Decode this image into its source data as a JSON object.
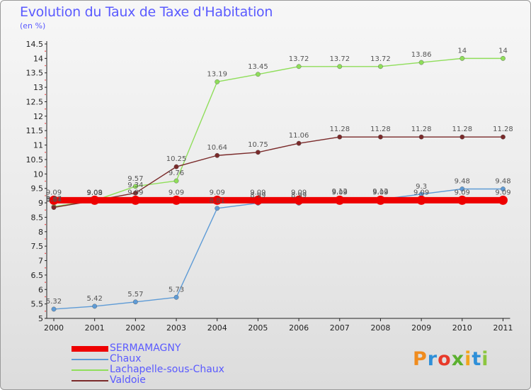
{
  "title": "Evolution du Taux de Taxe d'Habitation",
  "unit_label": "(en %)",
  "logo_text": "Proxiti",
  "chart_data": {
    "type": "line",
    "x": [
      "2000",
      "2001",
      "2002",
      "2003",
      "2004",
      "2005",
      "2006",
      "2007",
      "2008",
      "2009",
      "2010",
      "2011"
    ],
    "y_ticks": [
      "5",
      "5.5",
      "6",
      "6.5",
      "7",
      "7.5",
      "8",
      "8.5",
      "9",
      "9.5",
      "10",
      "10.5",
      "11",
      "11.5",
      "12",
      "12.5",
      "13",
      "13.5",
      "14",
      "14.5"
    ],
    "ylim": [
      5,
      14.5
    ],
    "series": [
      {
        "name": "SERMAMAGNY",
        "color": "#ee0000",
        "values": [
          9.09,
          9.09,
          9.09,
          9.09,
          9.09,
          9.09,
          9.09,
          9.09,
          9.09,
          9.09,
          9.09,
          9.09
        ],
        "labels": [
          "9.09",
          "9.09",
          "9.09",
          "9.09",
          "9.09",
          "9.09",
          "9.09",
          "9.09",
          "9.09",
          "9.09",
          "9.09",
          "9.09"
        ]
      },
      {
        "name": "Chaux",
        "color": "#5e9bd6",
        "values": [
          5.32,
          5.42,
          5.57,
          5.73,
          8.81,
          8.99,
          8.99,
          9.12,
          9.12,
          9.3,
          9.48,
          9.48
        ],
        "labels": [
          "5.32",
          "5.42",
          "5.57",
          "5.73",
          "8.81",
          "8.99",
          "8.99",
          "9.12",
          "9.12",
          "9.3",
          "9.48",
          "9.48"
        ]
      },
      {
        "name": "Lachapelle-sous-Chaux",
        "color": "#8fde5a",
        "values": [
          8.87,
          9.08,
          9.57,
          9.76,
          13.19,
          13.45,
          13.72,
          13.72,
          13.72,
          13.86,
          14,
          14
        ],
        "labels": [
          "8.87",
          "9.08",
          "9.57",
          "9.76",
          "13.19",
          "13.45",
          "13.72",
          "13.72",
          "13.72",
          "13.86",
          "14",
          "14"
        ]
      },
      {
        "name": "Valdoie",
        "color": "#7a2a2a",
        "values": [
          8.84,
          9.08,
          9.34,
          10.25,
          10.64,
          10.75,
          11.06,
          11.28,
          11.28,
          11.28,
          11.28,
          11.28
        ],
        "labels": [
          "8.84",
          "9.08",
          "9.34",
          "10.25",
          "10.64",
          "10.75",
          "11.06",
          "11.28",
          "11.28",
          "11.28",
          "11.28",
          "11.28"
        ]
      }
    ]
  }
}
